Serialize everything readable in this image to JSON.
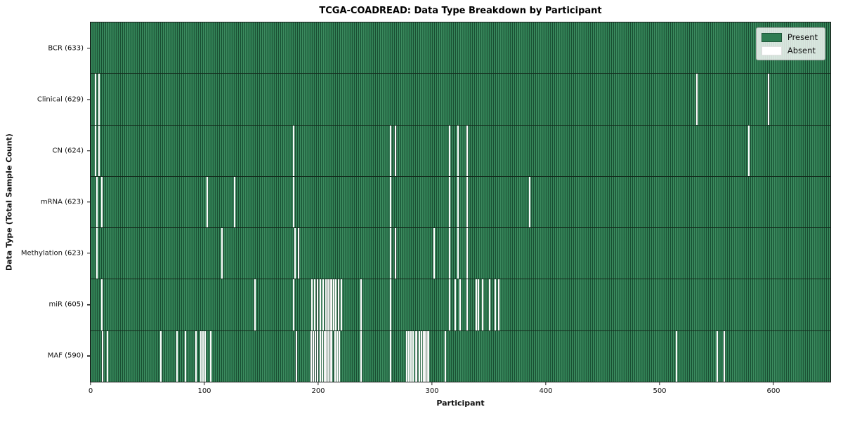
{
  "chart_data": {
    "type": "heatmap",
    "title": "TCGA-COADREAD: Data Type Breakdown by Participant",
    "xlabel": "Participant",
    "ylabel": "Data Type (Total Sample Count)",
    "legend_position": "upper right",
    "legend": {
      "present_label": "Present",
      "absent_label": "Absent"
    },
    "colors": {
      "present": "#2e7d52",
      "absent": "#ffffff"
    },
    "x_ticks": [
      0,
      100,
      200,
      300,
      400,
      500,
      600
    ],
    "x_max": 650,
    "participants_total": 633,
    "grid": false,
    "rows": [
      {
        "data_type": "BCR",
        "label": "BCR (633)",
        "present_count": 633,
        "absent_participants": []
      },
      {
        "data_type": "Clinical",
        "label": "Clinical (629)",
        "present_count": 629,
        "absent_participants": [
          4,
          7,
          532,
          595
        ]
      },
      {
        "data_type": "CN",
        "label": "CN (624)",
        "present_count": 624,
        "absent_participants": [
          4,
          7,
          178,
          263,
          267,
          315,
          322,
          330,
          578
        ]
      },
      {
        "data_type": "mRNA",
        "label": "mRNA (623)",
        "present_count": 623,
        "absent_participants": [
          5,
          9,
          102,
          126,
          178,
          263,
          315,
          322,
          330,
          385
        ]
      },
      {
        "data_type": "Methylation",
        "label": "Methylation (623)",
        "present_count": 623,
        "absent_participants": [
          5,
          115,
          179,
          182,
          263,
          267,
          301,
          315,
          322,
          330
        ]
      },
      {
        "data_type": "miR",
        "label": "miR (605)",
        "present_count": 605,
        "absent_participants": [
          9,
          144,
          178,
          194,
          196,
          199,
          201,
          204,
          206,
          208,
          210,
          211,
          213,
          215,
          217,
          220,
          237,
          263,
          315,
          320,
          324,
          330,
          338,
          340,
          344,
          350,
          355,
          358
        ]
      },
      {
        "data_type": "MAF",
        "label": "MAF (590)",
        "present_count": 590,
        "absent_participants": [
          10,
          14,
          61,
          75,
          83,
          92,
          96,
          98,
          100,
          105,
          180,
          193,
          195,
          197,
          199,
          201,
          203,
          205,
          206,
          208,
          210,
          211,
          214,
          216,
          218,
          237,
          263,
          277,
          279,
          281,
          283,
          285,
          286,
          288,
          290,
          292,
          293,
          295,
          296,
          311,
          514,
          550,
          556
        ]
      }
    ]
  }
}
